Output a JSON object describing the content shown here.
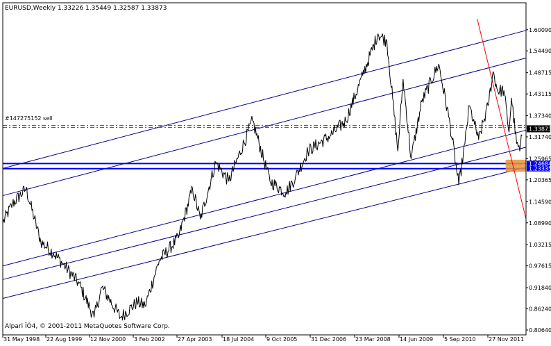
{
  "chart_data": {
    "type": "line",
    "symbol": "EURUSD",
    "timeframe": "Weekly",
    "header_text": "EURUSD,Weekly  1.33226 1.35449 1.32587 1.33873",
    "ohlc": {
      "open": 1.33226,
      "high": 1.35449,
      "low": 1.32587,
      "close": 1.33873
    },
    "footer_text": "Alpari ÎÒ4, © 2001-2011 MetaQuotes Software Corp.",
    "order_label": "#147275152 sell",
    "current_price_label": "1.33873",
    "current_price": 1.33873,
    "level_labels": [
      {
        "label": "1.24684",
        "value": 1.24684
      },
      {
        "label": "1.23335",
        "value": 1.23335
      }
    ],
    "ylim": [
      0.8064,
      1.6299
    ],
    "xlim": [
      "1998-05-31",
      "2012-03-15"
    ],
    "y_ticks": [
      "1.60090",
      "1.54490",
      "1.48715",
      "1.43115",
      "1.37340",
      "1.31740",
      "1.25965",
      "1.20365",
      "1.14590",
      "1.08990",
      "1.03215",
      "0.97615",
      "0.91840",
      "0.86240",
      "0.80640"
    ],
    "x_ticks": [
      "31 May 1998",
      "22 Aug 1999",
      "12 Nov 2000",
      "3 Feb 2002",
      "27 Apr 2003",
      "18 Jul 2004",
      "9 Oct 2005",
      "31 Dec 2006",
      "23 Mar 2008",
      "14 Jun 2009",
      "5 Sep 2010",
      "27 Nov 2011"
    ],
    "price_series": {
      "name": "EURUSD",
      "x": [
        "1998-05-31",
        "1998-09-01",
        "1999-01-10",
        "1999-06-01",
        "1999-10-01",
        "2000-01-05",
        "2000-06-01",
        "2000-10-26",
        "2001-01-10",
        "2001-07-06",
        "2001-12-15",
        "2002-03-01",
        "2002-07-15",
        "2003-01-15",
        "2003-06-01",
        "2003-08-15",
        "2004-01-10",
        "2004-05-15",
        "2004-12-30",
        "2005-06-15",
        "2005-11-15",
        "2006-02-15",
        "2006-06-15",
        "2007-01-15",
        "2007-06-15",
        "2007-11-25",
        "2008-04-20",
        "2008-07-15",
        "2008-10-28",
        "2008-12-18",
        "2009-03-05",
        "2009-06-15",
        "2009-11-25",
        "2010-03-15",
        "2010-06-07",
        "2010-08-05",
        "2010-09-15",
        "2010-11-05",
        "2010-12-15",
        "2011-03-15",
        "2011-05-04",
        "2011-06-15",
        "2011-08-15",
        "2011-10-03",
        "2011-10-27",
        "2011-12-15",
        "2012-01-15",
        "2012-02-05"
      ],
      "values": [
        1.09,
        1.14,
        1.18,
        1.04,
        1.01,
        0.98,
        0.93,
        0.84,
        0.92,
        0.84,
        0.88,
        0.87,
        0.99,
        1.05,
        1.18,
        1.1,
        1.25,
        1.2,
        1.36,
        1.2,
        1.17,
        1.21,
        1.28,
        1.32,
        1.36,
        1.48,
        1.59,
        1.57,
        1.28,
        1.47,
        1.26,
        1.41,
        1.51,
        1.35,
        1.19,
        1.3,
        1.4,
        1.35,
        1.31,
        1.4,
        1.49,
        1.44,
        1.44,
        1.33,
        1.42,
        1.3,
        1.28,
        1.32
      ]
    },
    "channel_lines": [
      {
        "x": [
          "1998-05-31",
          "2012-03-15"
        ],
        "y": [
          1.234,
          1.599
        ]
      },
      {
        "x": [
          "1998-05-31",
          "2012-03-15"
        ],
        "y": [
          1.162,
          1.526
        ]
      },
      {
        "x": [
          "1998-05-31",
          "2012-03-15"
        ],
        "y": [
          0.976,
          1.335
        ]
      },
      {
        "x": [
          "1998-05-31",
          "2012-03-15"
        ],
        "y": [
          0.94,
          1.29
        ]
      },
      {
        "x": [
          "1998-05-31",
          "2012-03-15"
        ],
        "y": [
          0.89,
          1.237
        ]
      }
    ],
    "trend_line": {
      "x": [
        "2010-12-01",
        "2012-03-15"
      ],
      "y": [
        1.6299,
        1.1
      ],
      "color": "#ff0000"
    },
    "horizontal_levels": [
      {
        "value": 1.24684,
        "color": "#0000ff"
      },
      {
        "value": 1.23335,
        "color": "#0000ff"
      },
      {
        "value": 1.3475,
        "color": "#ff0000"
      },
      {
        "value": 1.3425,
        "color": "#008000"
      }
    ],
    "colors": {
      "background": "#ffffff",
      "price_line": "#000000",
      "channel": "#00008b",
      "level": "#0000ff",
      "trend": "#ff0000",
      "highlight_zone": "#e8943a",
      "axis_text": "#000000"
    },
    "highlight_zone": {
      "x": [
        "2011-09-01",
        "2012-03-15"
      ],
      "y": [
        1.225,
        1.257
      ]
    },
    "grid": false,
    "legend": "none"
  }
}
